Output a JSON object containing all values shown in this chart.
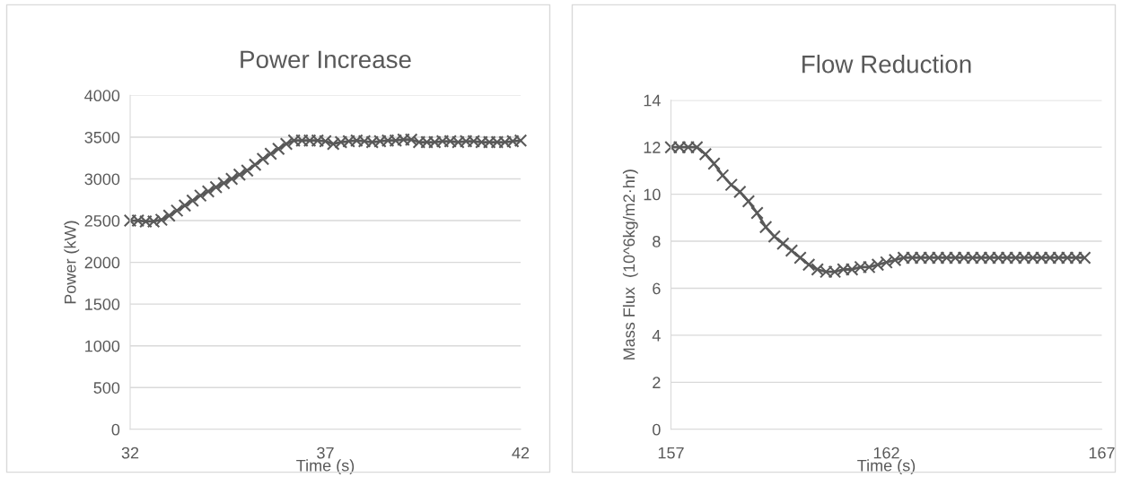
{
  "chart_data": [
    {
      "type": "line",
      "title": "Power Increase",
      "xlabel": "Time (s)",
      "ylabel": "Power (kW)",
      "xlim": [
        32,
        42
      ],
      "xticks": [
        32,
        37,
        42
      ],
      "ylim": [
        0,
        4000
      ],
      "yticks": [
        0,
        500,
        1000,
        1500,
        2000,
        2500,
        3000,
        3500,
        4000
      ],
      "grid": "y",
      "marker": "cross",
      "line_style": "solid",
      "series": [
        {
          "color": "#595959",
          "x": [
            32.0,
            32.2,
            32.4,
            32.6,
            32.8,
            33.0,
            33.2,
            33.4,
            33.6,
            33.8,
            34.0,
            34.2,
            34.4,
            34.6,
            34.8,
            35.0,
            35.2,
            35.4,
            35.6,
            35.8,
            36.0,
            36.2,
            36.4,
            36.6,
            36.8,
            37.0,
            37.2,
            37.4,
            37.6,
            37.8,
            38.0,
            38.2,
            38.4,
            38.6,
            38.8,
            39.0,
            39.2,
            39.4,
            39.6,
            39.8,
            40.0,
            40.2,
            40.4,
            40.6,
            40.8,
            41.0,
            41.2,
            41.4,
            41.6,
            41.8,
            42.0
          ],
          "values": [
            2500,
            2500,
            2490,
            2490,
            2510,
            2560,
            2620,
            2680,
            2740,
            2800,
            2850,
            2900,
            2950,
            3000,
            3050,
            3100,
            3170,
            3240,
            3300,
            3360,
            3420,
            3460,
            3460,
            3460,
            3460,
            3450,
            3420,
            3440,
            3450,
            3460,
            3450,
            3440,
            3450,
            3460,
            3460,
            3470,
            3470,
            3440,
            3440,
            3440,
            3450,
            3450,
            3440,
            3450,
            3450,
            3440,
            3440,
            3440,
            3440,
            3450,
            3460
          ]
        }
      ]
    },
    {
      "type": "line",
      "title": "Flow Reduction",
      "xlabel": "Time (s)",
      "ylabel": "Mass Flux  (10^6kg/m2·hr)",
      "xlim": [
        157,
        167
      ],
      "xticks": [
        157,
        162,
        167
      ],
      "ylim": [
        0,
        14
      ],
      "yticks": [
        0,
        2,
        4,
        6,
        8,
        10,
        12,
        14
      ],
      "grid": "y",
      "marker": "cross",
      "line_style": "solid",
      "series": [
        {
          "color": "#595959",
          "x": [
            157.0,
            157.2,
            157.4,
            157.6,
            157.8,
            158.0,
            158.2,
            158.4,
            158.6,
            158.8,
            159.0,
            159.2,
            159.4,
            159.6,
            159.8,
            160.0,
            160.2,
            160.4,
            160.6,
            160.8,
            161.0,
            161.2,
            161.4,
            161.6,
            161.8,
            162.0,
            162.2,
            162.4,
            162.6,
            162.8,
            163.0,
            163.2,
            163.4,
            163.6,
            163.8,
            164.0,
            164.2,
            164.4,
            164.6,
            164.8,
            165.0,
            165.2,
            165.4,
            165.6,
            165.8,
            166.0,
            166.2,
            166.4,
            166.6
          ],
          "values": [
            12.0,
            12.0,
            12.0,
            12.0,
            11.7,
            11.3,
            10.8,
            10.4,
            10.1,
            9.7,
            9.2,
            8.6,
            8.2,
            7.9,
            7.6,
            7.3,
            7.0,
            6.8,
            6.7,
            6.7,
            6.8,
            6.8,
            6.9,
            6.9,
            7.0,
            7.1,
            7.2,
            7.3,
            7.3,
            7.3,
            7.3,
            7.3,
            7.3,
            7.3,
            7.3,
            7.3,
            7.3,
            7.3,
            7.3,
            7.3,
            7.3,
            7.3,
            7.3,
            7.3,
            7.3,
            7.3,
            7.3,
            7.3,
            7.3
          ]
        }
      ]
    }
  ]
}
